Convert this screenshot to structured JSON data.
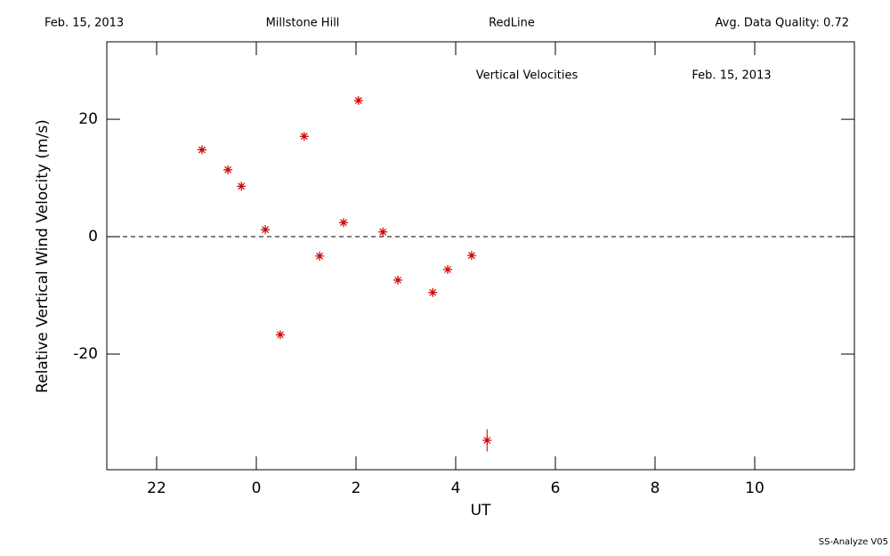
{
  "header": {
    "date": "Feb. 15, 2013",
    "site": "Millstone Hill",
    "instrument": "RedLine",
    "quality": "Avg. Data Quality: 0.72"
  },
  "footer": "SS-Analyze V05",
  "chart_data": {
    "type": "scatter",
    "title": "Vertical Velocities",
    "subtitle": "Feb. 15, 2013",
    "x_label": "UT",
    "y_label": "Relative Vertical Wind Velocity (m/s)",
    "x": [
      -1.09,
      -0.57,
      -0.3,
      0.18,
      0.48,
      0.96,
      1.27,
      1.75,
      2.05,
      2.54,
      2.84,
      3.54,
      3.84,
      4.32,
      4.63
    ],
    "series": [
      {
        "name": "Vertical Velocities",
        "color": "#cc0000",
        "values": [
          14.8,
          11.4,
          8.6,
          1.2,
          -16.7,
          17.1,
          -3.3,
          2.4,
          23.2,
          0.8,
          -7.4,
          -9.5,
          -5.6,
          -3.2,
          -34.7
        ],
        "errors": [
          0.5,
          0.5,
          0.5,
          0.5,
          0.5,
          0.5,
          0.5,
          0.5,
          0.5,
          0.5,
          0.5,
          0.5,
          0.5,
          0.5,
          1.9
        ]
      }
    ],
    "xlim": [
      -3,
      12
    ],
    "ylim": [
      -39.7,
      33.2
    ],
    "xticks": [
      {
        "value": -2,
        "label": "22"
      },
      0,
      2,
      4,
      6,
      8,
      10
    ],
    "yticks": [
      -20,
      0,
      20
    ],
    "reference_line": 0
  }
}
